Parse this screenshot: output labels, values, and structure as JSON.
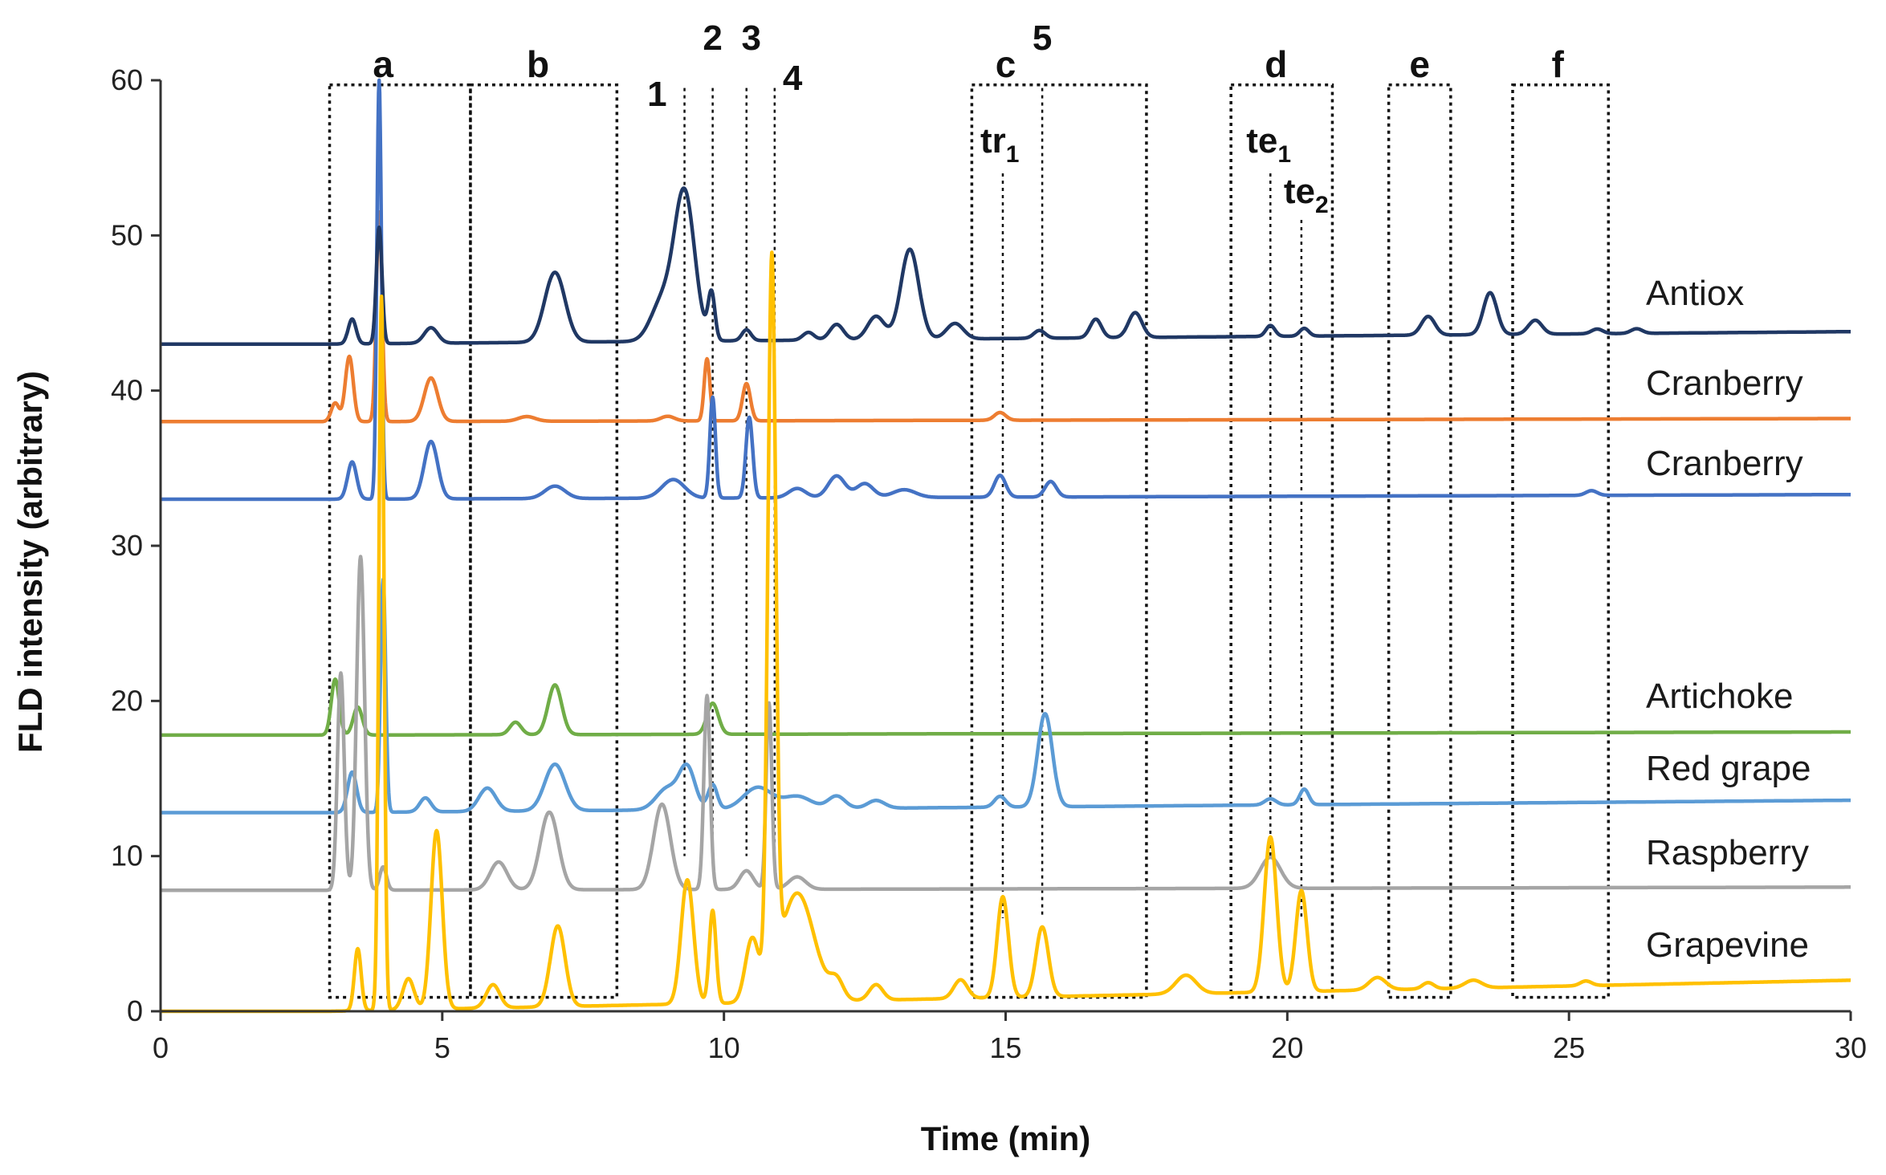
{
  "chart_data": {
    "type": "line",
    "title": "",
    "xlabel": "Time  (min)",
    "ylabel": "FLD intensity (arbitrary)",
    "xlim": [
      0,
      30
    ],
    "ylim": [
      0,
      60
    ],
    "x_ticks": [
      0,
      5,
      10,
      15,
      20,
      25,
      30
    ],
    "y_ticks": [
      0,
      10,
      20,
      30,
      40,
      50,
      60
    ],
    "grid": false,
    "legend": "labels at right end of each trace",
    "series": [
      {
        "name": "Antiox",
        "color": "#203864",
        "baseline": 43.0,
        "end_baseline": 43.8,
        "peaks": [
          [
            3.4,
            1.6,
            0.07
          ],
          [
            3.88,
            7.5,
            0.05
          ],
          [
            4.8,
            1.0,
            0.12
          ],
          [
            7.0,
            4.5,
            0.18
          ],
          [
            8.9,
            2.5,
            0.2
          ],
          [
            9.3,
            9.5,
            0.18
          ],
          [
            9.78,
            3.0,
            0.06
          ],
          [
            10.4,
            0.7,
            0.08
          ],
          [
            11.5,
            0.5,
            0.1
          ],
          [
            12.0,
            1.0,
            0.12
          ],
          [
            12.7,
            1.5,
            0.15
          ],
          [
            13.3,
            5.8,
            0.16
          ],
          [
            14.1,
            1.0,
            0.15
          ],
          [
            15.6,
            0.5,
            0.1
          ],
          [
            16.6,
            1.2,
            0.1
          ],
          [
            17.3,
            1.6,
            0.12
          ],
          [
            19.7,
            0.7,
            0.08
          ],
          [
            20.3,
            0.5,
            0.08
          ],
          [
            22.5,
            1.2,
            0.12
          ],
          [
            23.6,
            2.7,
            0.12
          ],
          [
            24.4,
            0.9,
            0.12
          ],
          [
            25.5,
            0.3,
            0.1
          ],
          [
            26.2,
            0.3,
            0.1
          ]
        ]
      },
      {
        "name": "Cranberry",
        "color": "#ED7D31",
        "baseline": 38.0,
        "end_baseline": 38.2,
        "peaks": [
          [
            3.1,
            1.2,
            0.07
          ],
          [
            3.35,
            4.2,
            0.07
          ],
          [
            3.88,
            13.5,
            0.05
          ],
          [
            4.8,
            2.8,
            0.12
          ],
          [
            6.5,
            0.3,
            0.15
          ],
          [
            9.0,
            0.3,
            0.12
          ],
          [
            9.7,
            4.0,
            0.05
          ],
          [
            10.4,
            2.4,
            0.07
          ],
          [
            14.9,
            0.5,
            0.1
          ]
        ]
      },
      {
        "name": "Cranberry",
        "color": "#4472C4",
        "baseline": 33.0,
        "end_baseline": 33.3,
        "peaks": [
          [
            3.4,
            2.4,
            0.08
          ],
          [
            3.88,
            27.0,
            0.04
          ],
          [
            4.8,
            3.7,
            0.12
          ],
          [
            7.0,
            0.8,
            0.18
          ],
          [
            9.1,
            1.2,
            0.2
          ],
          [
            9.8,
            6.5,
            0.05
          ],
          [
            10.45,
            5.2,
            0.06
          ],
          [
            11.3,
            0.6,
            0.15
          ],
          [
            12.0,
            1.4,
            0.15
          ],
          [
            12.5,
            0.9,
            0.15
          ],
          [
            13.2,
            0.5,
            0.2
          ],
          [
            14.9,
            1.4,
            0.1
          ],
          [
            15.8,
            1.0,
            0.1
          ],
          [
            25.4,
            0.3,
            0.1
          ]
        ]
      },
      {
        "name": "Artichoke",
        "color": "#70AD47",
        "baseline": 17.8,
        "end_baseline": 18.0,
        "peaks": [
          [
            3.1,
            3.6,
            0.07
          ],
          [
            3.5,
            1.8,
            0.08
          ],
          [
            6.3,
            0.8,
            0.1
          ],
          [
            7.0,
            3.2,
            0.12
          ],
          [
            9.8,
            2.0,
            0.1
          ]
        ]
      },
      {
        "name": "Red grape",
        "color": "#5B9BD5",
        "baseline": 12.8,
        "end_baseline": 13.6,
        "peaks": [
          [
            3.4,
            2.6,
            0.08
          ],
          [
            3.95,
            15.0,
            0.045
          ],
          [
            4.7,
            0.9,
            0.1
          ],
          [
            5.8,
            1.5,
            0.15
          ],
          [
            7.0,
            3.0,
            0.18
          ],
          [
            9.0,
            1.4,
            0.2
          ],
          [
            9.35,
            2.6,
            0.14
          ],
          [
            9.8,
            1.6,
            0.08
          ],
          [
            10.6,
            1.4,
            0.25
          ],
          [
            11.3,
            0.8,
            0.25
          ],
          [
            12.0,
            0.8,
            0.15
          ],
          [
            12.7,
            0.5,
            0.15
          ],
          [
            14.9,
            0.7,
            0.1
          ],
          [
            15.7,
            6.0,
            0.13
          ],
          [
            19.7,
            0.4,
            0.1
          ],
          [
            20.3,
            1.0,
            0.08
          ]
        ]
      },
      {
        "name": "Raspberry",
        "color": "#A5A5A5",
        "baseline": 7.8,
        "end_baseline": 8.0,
        "peaks": [
          [
            3.2,
            14.0,
            0.06
          ],
          [
            3.55,
            21.5,
            0.07
          ],
          [
            3.95,
            1.5,
            0.06
          ],
          [
            6.0,
            1.8,
            0.15
          ],
          [
            6.9,
            5.0,
            0.16
          ],
          [
            8.9,
            5.5,
            0.15
          ],
          [
            9.7,
            12.5,
            0.055
          ],
          [
            10.4,
            1.2,
            0.12
          ],
          [
            10.8,
            12.0,
            0.05
          ],
          [
            11.3,
            0.8,
            0.15
          ],
          [
            19.7,
            2.0,
            0.18
          ]
        ]
      },
      {
        "name": "Grapevine",
        "color": "#FFC000",
        "baseline": 0.0,
        "end_baseline": 2.0,
        "peaks": [
          [
            3.5,
            4.0,
            0.06
          ],
          [
            3.92,
            46.0,
            0.045
          ],
          [
            4.4,
            2.0,
            0.1
          ],
          [
            4.9,
            11.5,
            0.1
          ],
          [
            5.9,
            1.5,
            0.12
          ],
          [
            7.05,
            5.2,
            0.13
          ],
          [
            9.35,
            8.0,
            0.11
          ],
          [
            9.8,
            6.0,
            0.06
          ],
          [
            10.5,
            4.0,
            0.12
          ],
          [
            10.85,
            46.0,
            0.07
          ],
          [
            11.3,
            7.0,
            0.3
          ],
          [
            12.0,
            1.2,
            0.12
          ],
          [
            12.7,
            1.0,
            0.12
          ],
          [
            14.2,
            1.2,
            0.12
          ],
          [
            14.95,
            6.5,
            0.1
          ],
          [
            15.65,
            4.5,
            0.11
          ],
          [
            18.2,
            1.2,
            0.18
          ],
          [
            19.7,
            10.0,
            0.11
          ],
          [
            20.25,
            6.5,
            0.1
          ],
          [
            21.6,
            0.8,
            0.15
          ],
          [
            22.5,
            0.4,
            0.1
          ],
          [
            23.3,
            0.5,
            0.15
          ],
          [
            25.3,
            0.3,
            0.1
          ]
        ]
      }
    ],
    "regions": [
      {
        "label": "a",
        "x0": 3.0,
        "x1": 5.5,
        "y0": 0.9,
        "y1": 59.7
      },
      {
        "label": "b",
        "x0": 5.5,
        "x1": 8.1,
        "y0": 0.9,
        "y1": 59.7
      },
      {
        "label": "c",
        "x0": 14.4,
        "x1": 17.5,
        "y0": 0.9,
        "y1": 59.7
      },
      {
        "label": "d",
        "x0": 19.0,
        "x1": 20.8,
        "y0": 0.9,
        "y1": 59.7
      },
      {
        "label": "e",
        "x0": 21.8,
        "x1": 22.9,
        "y0": 0.9,
        "y1": 59.7
      },
      {
        "label": "f",
        "x0": 24.0,
        "x1": 25.7,
        "y0": 0.9,
        "y1": 59.7
      }
    ],
    "markers": [
      {
        "label": "1",
        "x": 9.3,
        "y_bottom": 10,
        "y_top": 60
      },
      {
        "label": "2",
        "x": 9.8,
        "y_bottom": 10,
        "y_top": 61
      },
      {
        "label": "3",
        "x": 10.4,
        "y_bottom": 10,
        "y_top": 61
      },
      {
        "label": "4",
        "x": 10.9,
        "y_bottom": 10,
        "y_top": 60
      },
      {
        "label": "5",
        "x": 15.65,
        "y_bottom": 6,
        "y_top": 61
      }
    ],
    "annotations": [
      {
        "text": "tr",
        "sub": "1",
        "x": 14.95,
        "y_bottom": 6,
        "y_top": 54
      },
      {
        "text": "te",
        "sub": "1",
        "x": 19.7,
        "y_bottom": 10,
        "y_top": 54
      },
      {
        "text": "te",
        "sub": "2",
        "x": 20.25,
        "y_bottom": 6,
        "y_top": 51
      }
    ]
  }
}
